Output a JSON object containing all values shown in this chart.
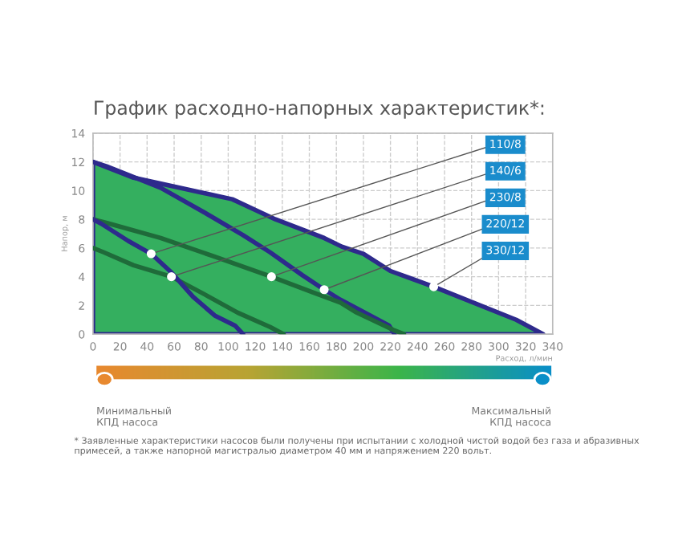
{
  "chart_data": {
    "type": "line",
    "title": "График расходно-напорных характеристик*:",
    "xlabel": "Расход, л/мин",
    "ylabel": "Напор, м",
    "xlim": [
      0,
      340
    ],
    "ylim": [
      0,
      14
    ],
    "xticks": [
      0,
      20,
      40,
      60,
      80,
      100,
      120,
      140,
      160,
      180,
      200,
      220,
      240,
      260,
      280,
      300,
      320,
      340
    ],
    "yticks": [
      0,
      2,
      4,
      6,
      8,
      10,
      12,
      14
    ],
    "grid": true,
    "line_style": "solid",
    "series": [
      {
        "type": "area",
        "color": "#2e2a8c",
        "x": [
          0,
          30,
          103,
          135,
          171,
          184,
          200,
          220,
          252,
          313,
          333
        ],
        "values": [
          12.0,
          10.9,
          9.4,
          8.0,
          6.7,
          6.1,
          5.6,
          4.4,
          3.3,
          1.0,
          0
        ]
      },
      {
        "color": "#2e2a8c",
        "x": [
          0,
          10,
          50,
          82,
          111,
          131,
          155,
          171,
          183,
          219,
          223
        ],
        "values": [
          12.0,
          11.7,
          10.2,
          8.5,
          6.9,
          5.7,
          4.1,
          3.1,
          2.4,
          0.6,
          0
        ]
      },
      {
        "color": "#1f6b3a",
        "x": [
          0,
          12,
          50,
          90,
          132,
          163,
          183,
          195,
          222,
          230
        ],
        "values": [
          8.0,
          7.7,
          6.7,
          5.4,
          4.0,
          2.9,
          2.2,
          1.5,
          0.3,
          0
        ]
      },
      {
        "color": "#1f6b3a",
        "x": [
          0,
          8,
          30,
          58,
          82,
          107,
          131,
          141
        ],
        "values": [
          6.0,
          5.7,
          4.8,
          4.0,
          2.8,
          1.5,
          0.5,
          0
        ]
      },
      {
        "color": "#2e2a8c",
        "x": [
          0,
          6,
          26,
          43,
          58,
          74,
          90,
          105,
          111
        ],
        "values": [
          8.0,
          7.7,
          6.5,
          5.6,
          4.3,
          2.6,
          1.3,
          0.6,
          0
        ]
      }
    ],
    "annotations": [
      {
        "text": "110/8",
        "x": 43,
        "y": 5.6
      },
      {
        "text": "140/6",
        "x": 58,
        "y": 4.0
      },
      {
        "text": "230/8",
        "x": 132,
        "y": 4.0
      },
      {
        "text": "220/12",
        "x": 171,
        "y": 3.1
      },
      {
        "text": "330/12",
        "x": 252,
        "y": 3.3
      },
      "Минимальный\nКПД насоса",
      "Максимальный\nКПД насоса",
      "* Заявленные характеристики насосов были получены при испытании с холодной чистой водой без газа и абразивных примесей, а также напорной магистралью диаметром 40 мм и напряжением 220 вольт."
    ]
  }
}
